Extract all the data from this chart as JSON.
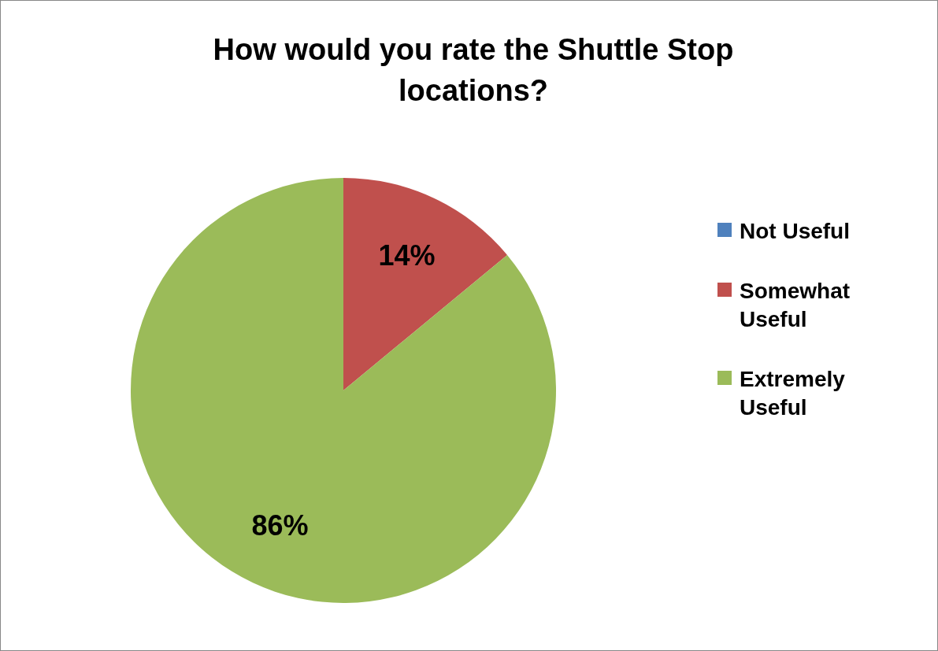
{
  "chart_data": {
    "type": "pie",
    "title": "How would you rate the Shuttle Stop locations?",
    "categories": [
      "Not Useful",
      "Somewhat Useful",
      "Extremely Useful"
    ],
    "values": [
      0,
      14,
      86
    ],
    "colors": [
      "#4f81bd",
      "#c0504d",
      "#9bbb59"
    ],
    "value_labels": [
      null,
      "14%",
      "86%"
    ],
    "legend": "right"
  }
}
